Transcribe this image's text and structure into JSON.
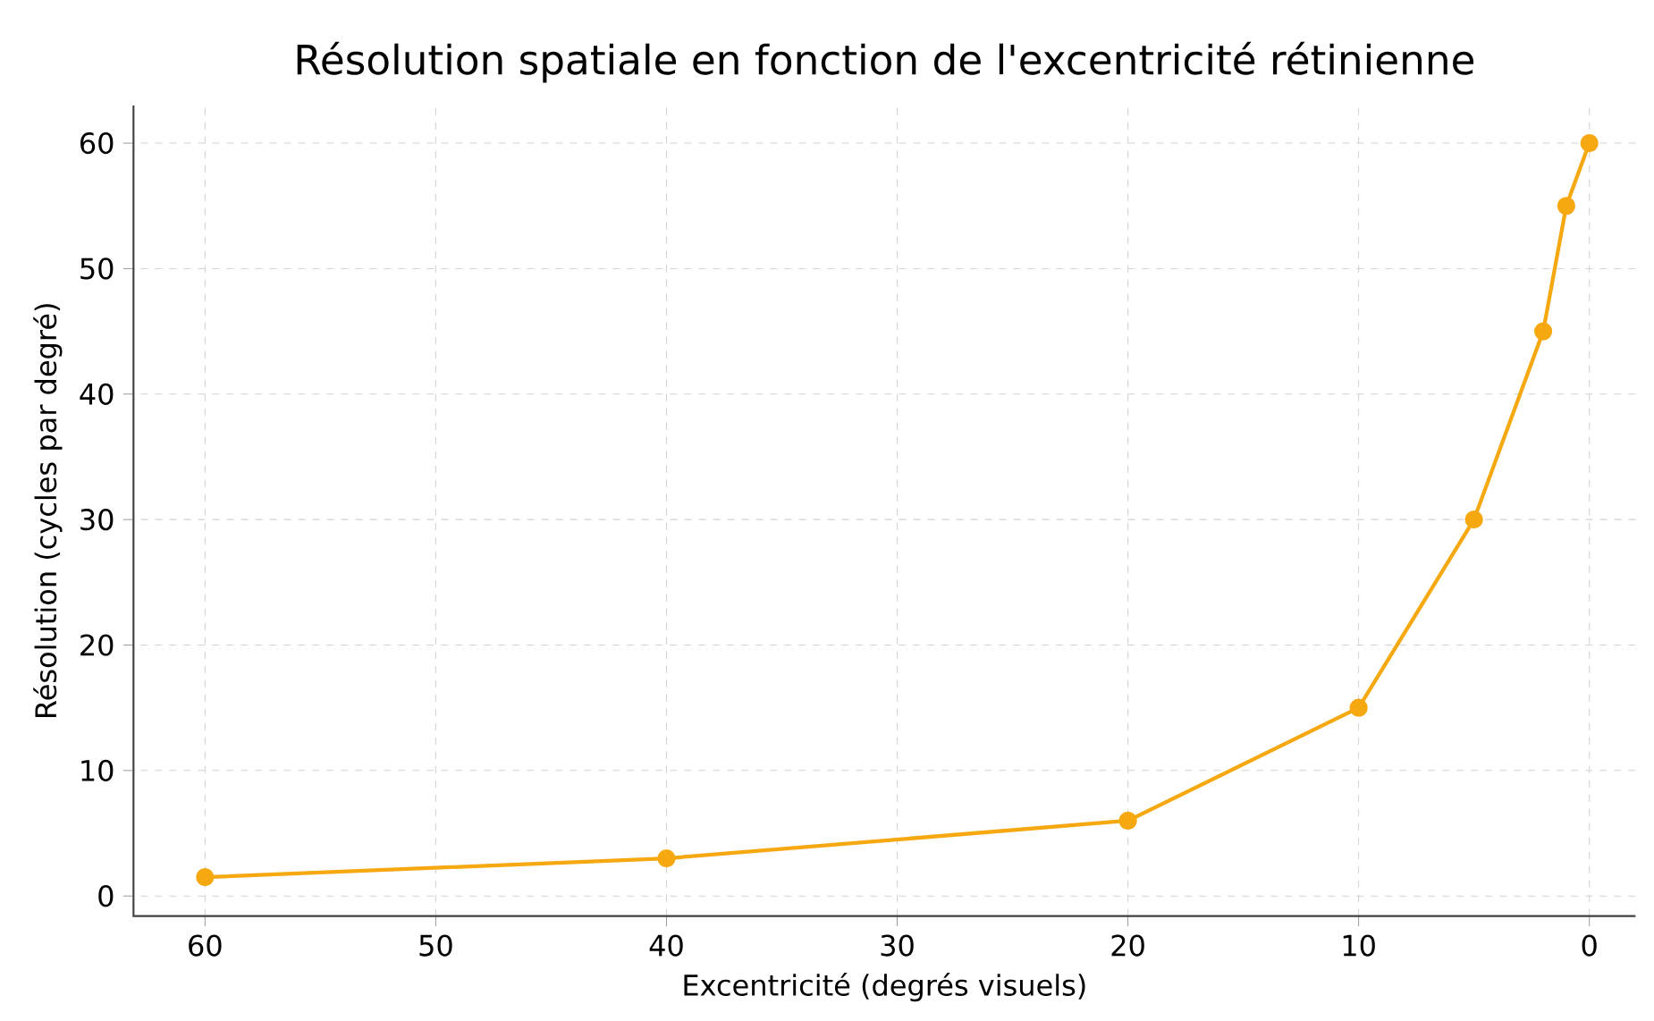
{
  "chart_data": {
    "type": "line",
    "title": "Résolution spatiale en fonction de l'excentricité rétinienne",
    "xlabel": "Excentricité (degrés visuels)",
    "ylabel": "Résolution (cycles par degré)",
    "x": [
      60,
      40,
      20,
      10,
      5,
      2,
      1,
      0
    ],
    "series": [
      {
        "color": "#f5a810",
        "values": [
          1.5,
          3,
          6,
          15,
          30,
          45,
          55,
          60
        ]
      }
    ],
    "xlim": [
      63.1,
      -2
    ],
    "ylim": [
      -1.6,
      63
    ],
    "xticks": [
      60,
      50,
      40,
      30,
      20,
      10,
      0
    ],
    "yticks": [
      0,
      10,
      20,
      30,
      40,
      50,
      60
    ],
    "grid": true,
    "marker": "circle",
    "line_style": "solid"
  }
}
